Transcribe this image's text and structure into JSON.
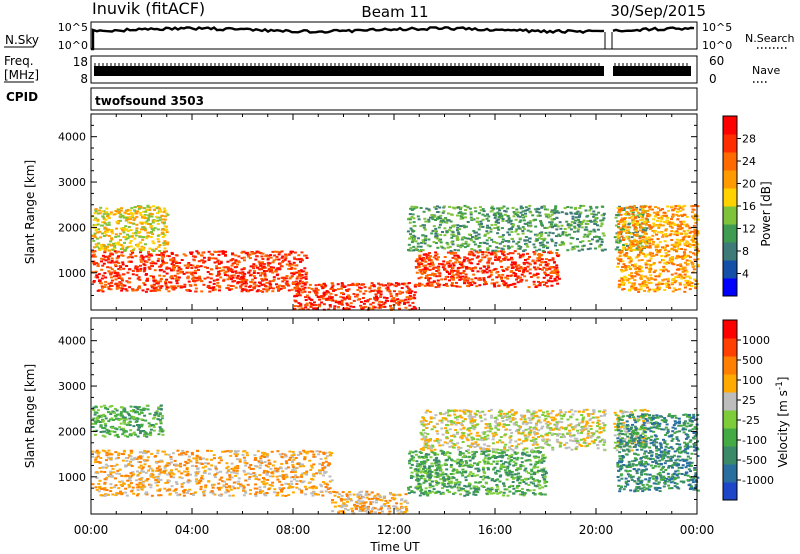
{
  "header": {
    "station": "Inuvik (fitACF)",
    "beam": "Beam 11",
    "date": "30/Sep/2015"
  },
  "strip_nsky": {
    "label": "N.Sky",
    "left_ticks": [
      "10^5",
      "10^0"
    ],
    "right_ticks": [
      "10^5",
      "10^0"
    ],
    "right_label": "N.Search"
  },
  "strip_freq": {
    "label_line1": "Freq.",
    "label_line2": "[MHz]",
    "left_ticks": [
      "18",
      "8"
    ],
    "right_ticks": [
      "60",
      "0"
    ],
    "right_label": "Nave"
  },
  "strip_cpid": {
    "label": "CPID",
    "value": "twofsound 3503"
  },
  "time_axis": {
    "label": "Time UT",
    "ticks": [
      "00:00",
      "04:00",
      "08:00",
      "12:00",
      "16:00",
      "20:00",
      "00:00"
    ]
  },
  "chart_data": [
    {
      "type": "heatmap",
      "title": "",
      "ylabel": "Slant Range [km]",
      "yticks": [
        "1000",
        "2000",
        "3000",
        "4000"
      ],
      "ylim": [
        180,
        4500
      ],
      "xlim": [
        0,
        24
      ],
      "colorbar": {
        "label": "Power [dB]",
        "ticks": [
          "4",
          "8",
          "12",
          "16",
          "20",
          "24",
          "28"
        ],
        "colors": [
          "#0000ff",
          "#1550a8",
          "#3e7a78",
          "#3f9b4f",
          "#7ec33a",
          "#ffd200",
          "#ff9a00",
          "#ff6a00",
          "#ff2d00",
          "#ff0000"
        ]
      },
      "regions": [
        {
          "t0": 0.0,
          "t1": 8.5,
          "r0": 600,
          "r1": 1500,
          "level": "28"
        },
        {
          "t0": 0.0,
          "t1": 3.0,
          "r0": 1500,
          "r1": 2500,
          "level": "16"
        },
        {
          "t0": 8.0,
          "t1": 12.8,
          "r0": 200,
          "r1": 800,
          "level": "28"
        },
        {
          "t0": 12.8,
          "t1": 18.5,
          "r0": 700,
          "r1": 1500,
          "level": "28"
        },
        {
          "t0": 12.5,
          "t1": 22.0,
          "r0": 1500,
          "r1": 2500,
          "level": "12"
        },
        {
          "t0": 20.8,
          "t1": 24.0,
          "r0": 600,
          "r1": 2500,
          "level": "20"
        }
      ]
    },
    {
      "type": "heatmap",
      "title": "",
      "ylabel": "Slant Range [km]",
      "yticks": [
        "1000",
        "2000",
        "3000",
        "4000"
      ],
      "ylim": [
        180,
        4500
      ],
      "xlim": [
        0,
        24
      ],
      "colorbar": {
        "label": "Velocity [m s^-1]",
        "ticks": [
          "1000",
          "500",
          "100",
          "25",
          "-25",
          "-100",
          "-500",
          "-1000"
        ],
        "colors": [
          "#1e46c8",
          "#2a6ea0",
          "#3a8a6a",
          "#44aa44",
          "#7dcc3a",
          "#bdbdbd",
          "#ffaa00",
          "#ff7f00",
          "#ff4000",
          "#ff0000"
        ]
      },
      "regions": [
        {
          "t0": 0.0,
          "t1": 9.5,
          "r0": 600,
          "r1": 1600,
          "level": "100"
        },
        {
          "t0": 0.0,
          "t1": 2.8,
          "r0": 1900,
          "r1": 2600,
          "level": "-100"
        },
        {
          "t0": 9.5,
          "t1": 12.5,
          "r0": 200,
          "r1": 700,
          "level": "100"
        },
        {
          "t0": 12.5,
          "t1": 18.0,
          "r0": 600,
          "r1": 1600,
          "level": "-100"
        },
        {
          "t0": 13.0,
          "t1": 22.0,
          "r0": 1600,
          "r1": 2500,
          "level": "25"
        },
        {
          "t0": 20.8,
          "t1": 24.0,
          "r0": 700,
          "r1": 2400,
          "level": "-500"
        }
      ]
    }
  ]
}
